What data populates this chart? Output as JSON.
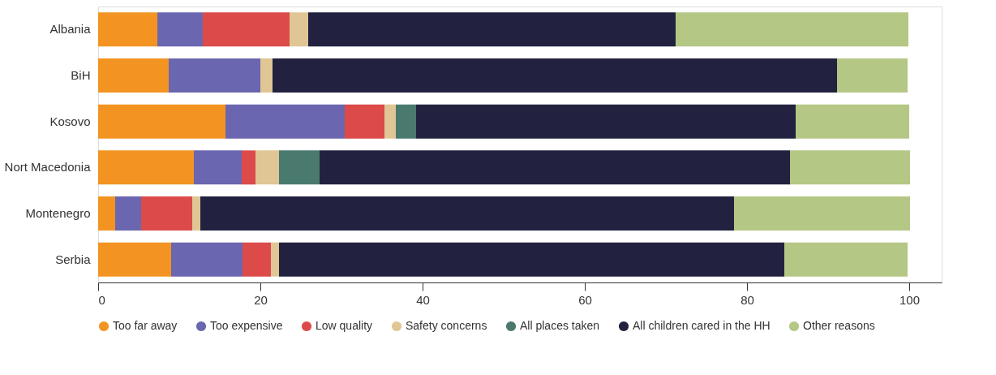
{
  "chart_data": {
    "type": "bar",
    "orientation": "horizontal",
    "stacked": true,
    "categories": [
      "Albania",
      "BiH",
      "Kosovo",
      "Nort Macedonia",
      "Montenegro",
      "Serbia"
    ],
    "series": [
      {
        "name": "Too far away",
        "color": "#f39422",
        "values": [
          7.3,
          8.7,
          15.7,
          11.8,
          2.1,
          9.0
        ]
      },
      {
        "name": "Too expensive",
        "color": "#6b66b0",
        "values": [
          5.6,
          11.3,
          14.7,
          5.9,
          3.2,
          8.8
        ]
      },
      {
        "name": "Low quality",
        "color": "#dc4a4a",
        "values": [
          10.7,
          null,
          4.9,
          1.7,
          6.3,
          3.5
        ]
      },
      {
        "name": "Safety concerns",
        "color": "#e0c695",
        "values": [
          2.3,
          1.5,
          1.4,
          2.9,
          1.0,
          1.0
        ]
      },
      {
        "name": "All places taken",
        "color": "#4a7a6e",
        "values": [
          null,
          null,
          2.5,
          5.0,
          null,
          null
        ]
      },
      {
        "name": "All children cared in the HH",
        "color": "#222240",
        "values": [
          45.3,
          69.6,
          46.8,
          58.0,
          65.8,
          62.3
        ]
      },
      {
        "name": "Other reasons",
        "color": "#b5c785",
        "values": [
          28.7,
          8.7,
          14.0,
          14.8,
          21.7,
          15.2
        ]
      }
    ],
    "xlim": [
      0,
      104
    ],
    "xticks": [
      0,
      20,
      40,
      60,
      80,
      100
    ],
    "grid": false,
    "legend": "bottom"
  }
}
